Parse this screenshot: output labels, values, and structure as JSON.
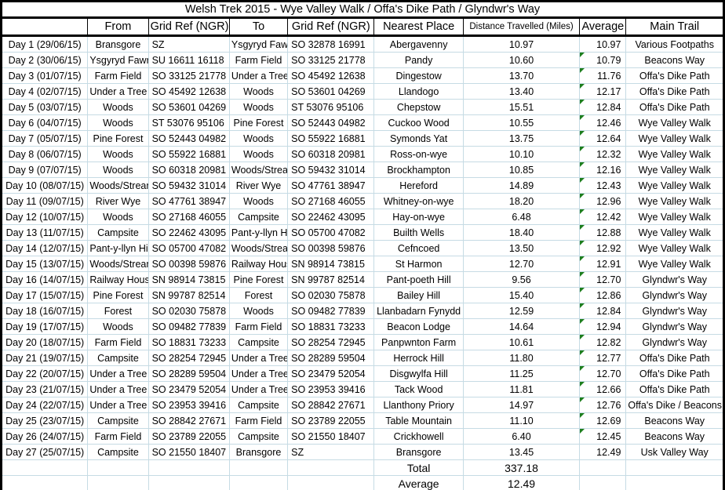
{
  "title": "Welsh Trek 2015 - Wye Valley Walk / Offa's Dike Path / Glyndwr's Way",
  "colors": {
    "gridline": "#c6dbe4",
    "outer_border": "#000000",
    "error_indicator_green": "#1d7e1d"
  },
  "table": {
    "headers": [
      "",
      "From",
      "Grid Ref (NGR)",
      "To",
      "Grid Ref (NGR)",
      "Nearest Place",
      "Distance Travelled (Miles)",
      "Average",
      "Main Trail"
    ],
    "rows": [
      {
        "day": "Day 1 (29/06/15)",
        "from": "Bransgore",
        "from_ref": "SZ",
        "to": "Ysgyryd Fawr",
        "to_ref": "SO 32878 16991",
        "nearest": "Abergavenny",
        "miles": "10.97",
        "avg": "10.97",
        "trail": "Various Footpaths",
        "error_flag": false
      },
      {
        "day": "Day 2 (30/06/15)",
        "from": "Ysgyryd Fawr",
        "from_ref": "SU 16611 16118",
        "to": "Farm Field",
        "to_ref": "SO 33125 21778",
        "nearest": "Pandy",
        "miles": "10.60",
        "avg": "10.79",
        "trail": "Beacons Way",
        "error_flag": true
      },
      {
        "day": "Day 3 (01/07/15)",
        "from": "Farm Field",
        "from_ref": "SO 33125 21778",
        "to": "Under a Tree",
        "to_ref": "SO 45492 12638",
        "nearest": "Dingestow",
        "miles": "13.70",
        "avg": "11.76",
        "trail": "Offa's Dike Path",
        "error_flag": true
      },
      {
        "day": "Day 4 (02/07/15)",
        "from": "Under a Tree",
        "from_ref": "SO 45492 12638",
        "to": "Woods",
        "to_ref": "SO 53601 04269",
        "nearest": "Llandogo",
        "miles": "13.40",
        "avg": "12.17",
        "trail": "Offa's Dike Path",
        "error_flag": true
      },
      {
        "day": "Day 5 (03/07/15)",
        "from": "Woods",
        "from_ref": "SO 53601 04269",
        "to": "Woods",
        "to_ref": "ST 53076 95106",
        "nearest": "Chepstow",
        "miles": "15.51",
        "avg": "12.84",
        "trail": "Offa's Dike Path",
        "error_flag": true
      },
      {
        "day": "Day 6 (04/07/15)",
        "from": "Woods",
        "from_ref": "ST 53076 95106",
        "to": "Pine Forest",
        "to_ref": "SO 52443 04982",
        "nearest": "Cuckoo Wood",
        "miles": "10.55",
        "avg": "12.46",
        "trail": "Wye Valley Walk",
        "error_flag": true
      },
      {
        "day": "Day 7 (05/07/15)",
        "from": "Pine Forest",
        "from_ref": "SO 52443 04982",
        "to": "Woods",
        "to_ref": "SO 55922 16881",
        "nearest": "Symonds Yat",
        "miles": "13.75",
        "avg": "12.64",
        "trail": "Wye Valley Walk",
        "error_flag": true
      },
      {
        "day": "Day 8 (06/07/15)",
        "from": "Woods",
        "from_ref": "SO 55922 16881",
        "to": "Woods",
        "to_ref": "SO 60318 20981",
        "nearest": "Ross-on-wye",
        "miles": "10.10",
        "avg": "12.32",
        "trail": "Wye Valley Walk",
        "error_flag": true
      },
      {
        "day": "Day 9 (07/07/15)",
        "from": "Woods",
        "from_ref": "SO 60318 20981",
        "to": "Woods/Stream",
        "to_ref": "SO 59432 31014",
        "nearest": "Brockhampton",
        "miles": "10.85",
        "avg": "12.16",
        "trail": "Wye Valley Walk",
        "error_flag": true
      },
      {
        "day": "Day 10 (08/07/15)",
        "from": "Woods/Stream",
        "from_ref": "SO 59432 31014",
        "to": "River Wye",
        "to_ref": "SO 47761 38947",
        "nearest": "Hereford",
        "miles": "14.89",
        "avg": "12.43",
        "trail": "Wye Valley Walk",
        "error_flag": true
      },
      {
        "day": "Day 11 (09/07/15)",
        "from": "River Wye",
        "from_ref": "SO 47761 38947",
        "to": "Woods",
        "to_ref": "SO 27168 46055",
        "nearest": "Whitney-on-wye",
        "miles": "18.20",
        "avg": "12.96",
        "trail": "Wye Valley Walk",
        "error_flag": true
      },
      {
        "day": "Day 12 (10/07/15)",
        "from": "Woods",
        "from_ref": "SO 27168 46055",
        "to": "Campsite",
        "to_ref": "SO 22462 43095",
        "nearest": "Hay-on-wye",
        "miles": "6.48",
        "avg": "12.42",
        "trail": "Wye Valley Walk",
        "error_flag": true
      },
      {
        "day": "Day 13 (11/07/15)",
        "from": "Campsite",
        "from_ref": "SO 22462 43095",
        "to": "Pant-y-llyn Hill",
        "to_ref": "SO 05700 47082",
        "nearest": "Builth Wells",
        "miles": "18.40",
        "avg": "12.88",
        "trail": "Wye Valley Walk",
        "error_flag": true
      },
      {
        "day": "Day 14 (12/07/15)",
        "from": "Pant-y-llyn Hill",
        "from_ref": "SO 05700 47082",
        "to": "Woods/Stream",
        "to_ref": "SO 00398 59876",
        "nearest": "Cefncoed",
        "miles": "13.50",
        "avg": "12.92",
        "trail": "Wye Valley Walk",
        "error_flag": true
      },
      {
        "day": "Day 15 (13/07/15)",
        "from": "Woods/Stream",
        "from_ref": "SO 00398 59876",
        "to": "Railway House",
        "to_ref": "SN 98914 73815",
        "nearest": "St Harmon",
        "miles": "12.70",
        "avg": "12.91",
        "trail": "Wye Valley Walk",
        "error_flag": true
      },
      {
        "day": "Day 16 (14/07/15)",
        "from": "Railway House",
        "from_ref": "SN 98914 73815",
        "to": "Pine Forest",
        "to_ref": "SN 99787 82514",
        "nearest": "Pant-poeth Hill",
        "miles": "9.56",
        "avg": "12.70",
        "trail": "Glyndwr's Way",
        "error_flag": true
      },
      {
        "day": "Day 17 (15/07/15)",
        "from": "Pine Forest",
        "from_ref": "SN 99787 82514",
        "to": "Forest",
        "to_ref": "SO 02030 75878",
        "nearest": "Bailey Hill",
        "miles": "15.40",
        "avg": "12.86",
        "trail": "Glyndwr's Way",
        "error_flag": true
      },
      {
        "day": "Day 18 (16/07/15)",
        "from": "Forest",
        "from_ref": "SO 02030 75878",
        "to": "Woods",
        "to_ref": "SO 09482 77839",
        "nearest": "Llanbadarn Fynydd",
        "miles": "12.59",
        "avg": "12.84",
        "trail": "Glyndwr's Way",
        "error_flag": true
      },
      {
        "day": "Day 19 (17/07/15)",
        "from": "Woods",
        "from_ref": "SO 09482 77839",
        "to": "Farm Field",
        "to_ref": "SO 18831 73233",
        "nearest": "Beacon Lodge",
        "miles": "14.64",
        "avg": "12.94",
        "trail": "Glyndwr's Way",
        "error_flag": true
      },
      {
        "day": "Day 20 (18/07/15)",
        "from": "Farm Field",
        "from_ref": "SO 18831 73233",
        "to": "Campsite",
        "to_ref": "SO 28254 72945",
        "nearest": "Panpwnton Farm",
        "miles": "10.61",
        "avg": "12.82",
        "trail": "Glyndwr's Way",
        "error_flag": true
      },
      {
        "day": "Day 21 (19/07/15)",
        "from": "Campsite",
        "from_ref": "SO 28254 72945",
        "to": "Under a Tree",
        "to_ref": "SO 28289 59504",
        "nearest": "Herrock Hill",
        "miles": "11.80",
        "avg": "12.77",
        "trail": "Offa's Dike Path",
        "error_flag": true
      },
      {
        "day": "Day 22 (20/07/15)",
        "from": "Under a Tree",
        "from_ref": "SO 28289 59504",
        "to": "Under a Tree",
        "to_ref": "SO 23479 52054",
        "nearest": "Disgwylfa Hill",
        "miles": "11.25",
        "avg": "12.70",
        "trail": "Offa's Dike Path",
        "error_flag": true
      },
      {
        "day": "Day 23 (21/07/15)",
        "from": "Under a Tree",
        "from_ref": "SO 23479 52054",
        "to": "Under a Tree",
        "to_ref": "SO 23953 39416",
        "nearest": "Tack Wood",
        "miles": "11.81",
        "avg": "12.66",
        "trail": "Offa's Dike Path",
        "error_flag": true
      },
      {
        "day": "Day 24 (22/07/15)",
        "from": "Under a Tree",
        "from_ref": "SO 23953 39416",
        "to": "Campsite",
        "to_ref": "SO 28842 27671",
        "nearest": "Llanthony Priory",
        "miles": "14.97",
        "avg": "12.76",
        "trail": "Offa's Dike / Beacons",
        "error_flag": true
      },
      {
        "day": "Day 25 (23/07/15)",
        "from": "Campsite",
        "from_ref": "SO 28842 27671",
        "to": "Farm Field",
        "to_ref": "SO 23789 22055",
        "nearest": "Table Mountain",
        "miles": "11.10",
        "avg": "12.69",
        "trail": "Beacons Way",
        "error_flag": true
      },
      {
        "day": "Day 26 (24/07/15)",
        "from": "Farm Field",
        "from_ref": "SO 23789 22055",
        "to": "Campsite",
        "to_ref": "SO 21550 18407",
        "nearest": "Crickhowell",
        "miles": "6.40",
        "avg": "12.45",
        "trail": "Beacons Way",
        "error_flag": true
      },
      {
        "day": "Day 27 (25/07/15)",
        "from": "Campsite",
        "from_ref": "SO 21550 18407",
        "to": "Bransgore",
        "to_ref": "SZ",
        "nearest": "Bransgore",
        "miles": "13.45",
        "avg": "12.49",
        "trail": "Usk Valley Way",
        "error_flag": false
      }
    ],
    "footer": {
      "total_label": "Total",
      "total_value": "337.18",
      "average_label": "Average",
      "average_value": "12.49"
    }
  }
}
